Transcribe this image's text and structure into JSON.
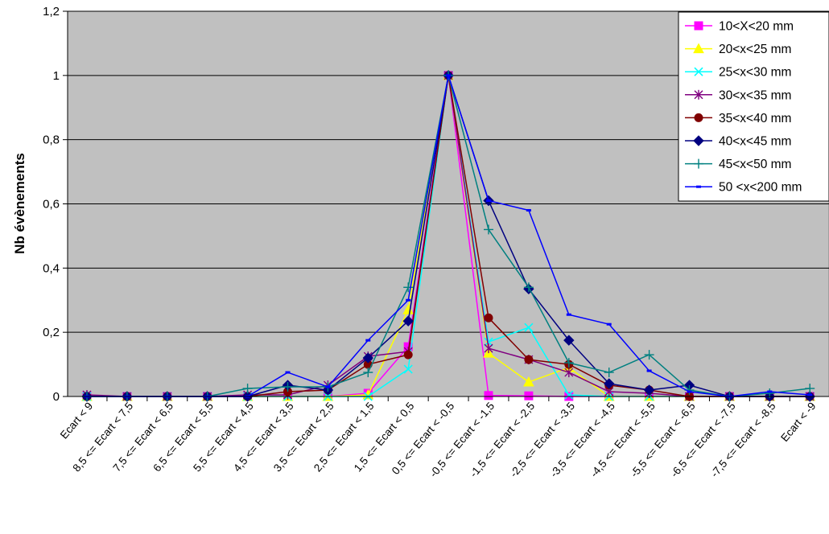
{
  "chart_data": {
    "type": "line",
    "title": "",
    "ylabel": "Nb évènements",
    "xlabel": "",
    "ylim": [
      0,
      1.2
    ],
    "y_ticks": [
      "0",
      "0,2",
      "0,4",
      "0,6",
      "0,8",
      "1",
      "1,2"
    ],
    "grid": "horizontal",
    "legend_position": "top-right",
    "plot_background": "#c0c0c0",
    "categories": [
      "Ecart < 9",
      "8,5 <= Ecart < 7,5",
      "7,5 <= Ecart < 6,5",
      "6,5 <= Ecart < 5,5",
      "5,5 <= Ecart < 4,5",
      "4,5 <= Ecart < 3,5",
      "3,5 <= Ecart < 2,5",
      "2,5 <= Ecart < 1,5",
      "1,5 <= Ecart < 0,5",
      "0,5 <= Ecart < -0,5",
      "-0,5 <= Ecart < -1,5",
      "-1,5 <= Ecart < -2,5",
      "-2,5 <= Ecart < -3,5",
      "-3,5 <= Ecart < -4,5",
      "-4,5 <= Ecart < -5,5",
      "-5,5 <= Ecart < -6,5",
      "-6,5 <= Ecart < -7,5",
      "-7,5 <= Ecart < -8,5",
      "Ecart < -9"
    ],
    "series": [
      {
        "name": "10<X<20 mm",
        "color": "#ff00ff",
        "marker": "square",
        "values": [
          0,
          0,
          0,
          0,
          0,
          0,
          0,
          0.01,
          0.155,
          1,
          0.003,
          0.002,
          0,
          0,
          0,
          0,
          0,
          0,
          0
        ]
      },
      {
        "name": "20<x<25 mm",
        "color": "#ffff00",
        "marker": "triangle",
        "values": [
          0,
          0,
          0,
          0,
          0,
          0,
          0,
          0.005,
          0.27,
          1,
          0.135,
          0.045,
          0.09,
          0,
          0,
          0,
          0,
          0,
          0
        ]
      },
      {
        "name": "25<x<30 mm",
        "color": "#00ffff",
        "marker": "x",
        "values": [
          0,
          0,
          0,
          0,
          0,
          0,
          0,
          0,
          0.085,
          1,
          0.17,
          0.215,
          0.005,
          0,
          0,
          0,
          0,
          0,
          0
        ]
      },
      {
        "name": "30<x<35 mm",
        "color": "#800080",
        "marker": "star",
        "values": [
          0.005,
          0,
          0,
          0,
          0.005,
          0.005,
          0.035,
          0.125,
          0.14,
          1,
          0.15,
          0.115,
          0.075,
          0.015,
          0.01,
          0,
          0,
          0,
          0
        ]
      },
      {
        "name": "35<x<40 mm",
        "color": "#800000",
        "marker": "circle",
        "values": [
          0,
          0,
          0,
          0,
          0,
          0.015,
          0.02,
          0.1,
          0.13,
          1,
          0.245,
          0.115,
          0.1,
          0.035,
          0.02,
          0,
          0,
          0,
          0
        ]
      },
      {
        "name": "40<x<45 mm",
        "color": "#000080",
        "marker": "diamond",
        "values": [
          0,
          0,
          0,
          0,
          0,
          0.035,
          0.02,
          0.12,
          0.235,
          1,
          0.61,
          0.335,
          0.175,
          0.04,
          0.02,
          0.035,
          0,
          0,
          0
        ]
      },
      {
        "name": "45<x<50 mm",
        "color": "#008080",
        "marker": "plus",
        "values": [
          0,
          0,
          0,
          0,
          0.025,
          0.03,
          0.03,
          0.075,
          0.34,
          1,
          0.52,
          0.34,
          0.105,
          0.075,
          0.13,
          0.02,
          0,
          0.01,
          0.025
        ]
      },
      {
        "name": "50 <x<200 mm",
        "color": "#0000ff",
        "marker": "dash",
        "values": [
          0,
          0,
          0,
          0,
          0,
          0.075,
          0.03,
          0.175,
          0.3,
          1,
          0.61,
          0.58,
          0.255,
          0.225,
          0.08,
          0.015,
          0,
          0.015,
          0.005
        ]
      }
    ]
  }
}
